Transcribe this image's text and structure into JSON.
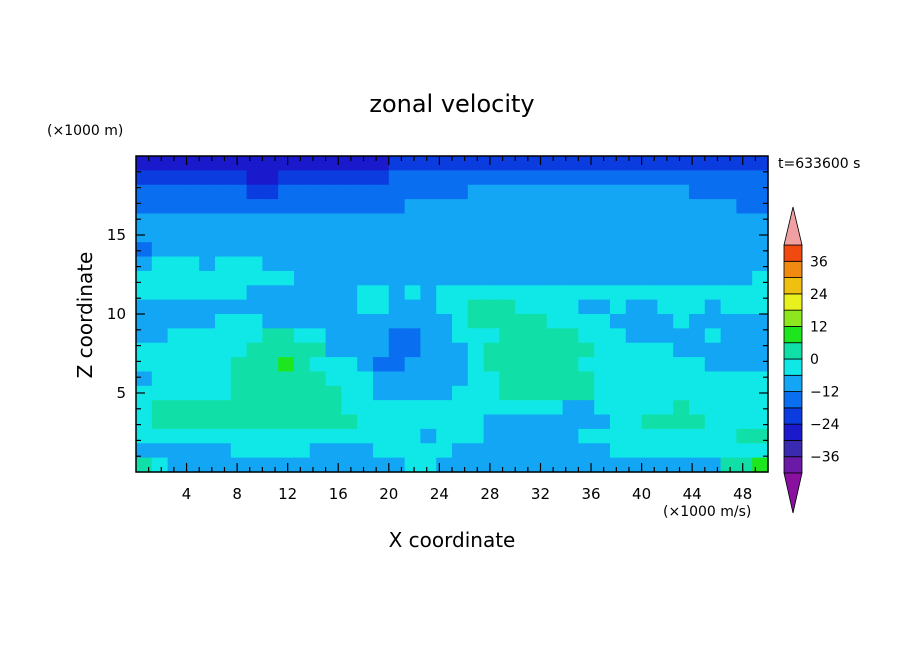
{
  "chart_data": {
    "type": "heatmap",
    "title": "zonal velocity",
    "xlabel": "X coordinate",
    "ylabel": "Z coordinate",
    "x_unit": "(×1000 m/s)",
    "y_unit": "(×1000 m)",
    "time_label": "t=633600 s",
    "xlim": [
      0,
      50
    ],
    "ylim": [
      0,
      20
    ],
    "x_ticks": [
      4,
      8,
      12,
      16,
      20,
      24,
      28,
      32,
      36,
      40,
      44,
      48
    ],
    "y_ticks": [
      5,
      10,
      15
    ],
    "colorbar": {
      "levels": [
        -42,
        -36,
        -30,
        -24,
        -18,
        -12,
        -6,
        0,
        6,
        12,
        18,
        24,
        30,
        36,
        42
      ],
      "tick_labels": [
        -36,
        -24,
        -12,
        0,
        12,
        24,
        36
      ],
      "colors": [
        "#6a1aa6",
        "#3a2ab0",
        "#1a1acc",
        "#0a3ce0",
        "#0a6ef0",
        "#12a6f5",
        "#10e8e8",
        "#10e0a8",
        "#1ee61e",
        "#8ee61e",
        "#e8f01e",
        "#f0c010",
        "#f08a10",
        "#f04a10",
        "#e81010"
      ],
      "over_color": "#f0a0a0",
      "under_color": "#8a10a0"
    },
    "field": {
      "rows_from_top": [
        "2222222222222222333333333333333333333333",
        "3333333223333333444444444444444444444444",
        "4444444334444444444445555555555555544444",
        "4444444444444444455555555555555555555544",
        "5555555555555555555555555555555555555555",
        "5555555555555555555555555555555555555555",
        "4555555555555555555555555555555555555555",
        "5666566655555555555555555555555555555555",
        "6666666666555555555555555555555555555556",
        "6666666555555566565666666666666666666666",
        "5555555555555566555667776666556556665666",
        "5555566655555555555567777766665555655555",
        "5566666677665555445566677777666555556555",
        "6666666777775555445556777777766666555555",
        "6666667778766654455556777777666666665555",
        "5666667777776665555556677777766666666666",
        "6666667777777665555566677777766666666666",
        "6777777777777666666666666665566666766666",
        "6777777777777766666666555555556677776666",
        "6666666666666666665666555555666666666677",
        "5555556666655556666655555555556666666666",
        "7655555555555555566555555555555555555778"
      ]
    }
  }
}
